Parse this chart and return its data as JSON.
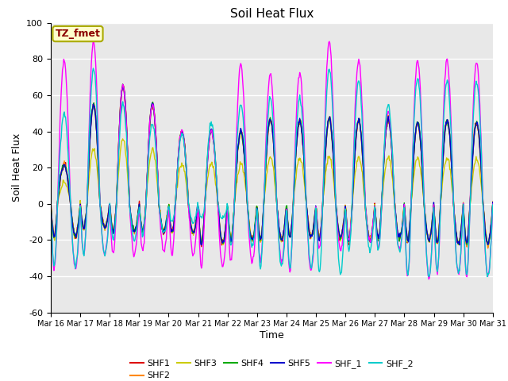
{
  "title": "Soil Heat Flux",
  "ylabel": "Soil Heat Flux",
  "xlabel": "Time",
  "ylim": [
    -60,
    100
  ],
  "yticks": [
    -60,
    -40,
    -20,
    0,
    20,
    40,
    60,
    80,
    100
  ],
  "bg_color": "#e8e8e8",
  "fig_color": "#ffffff",
  "tz_label": "TZ_fmet",
  "tz_bg": "#ffffcc",
  "tz_border": "#aaaa00",
  "tz_text_color": "#8b0000",
  "series_names": [
    "SHF1",
    "SHF2",
    "SHF3",
    "SHF4",
    "SHF5",
    "SHF_1",
    "SHF_2"
  ],
  "series_colors": [
    "#dd0000",
    "#ff8800",
    "#cccc00",
    "#00aa00",
    "#0000cc",
    "#ff00ff",
    "#00cccc"
  ],
  "xstart": 16,
  "num_days": 15,
  "legend_ncol": 6
}
